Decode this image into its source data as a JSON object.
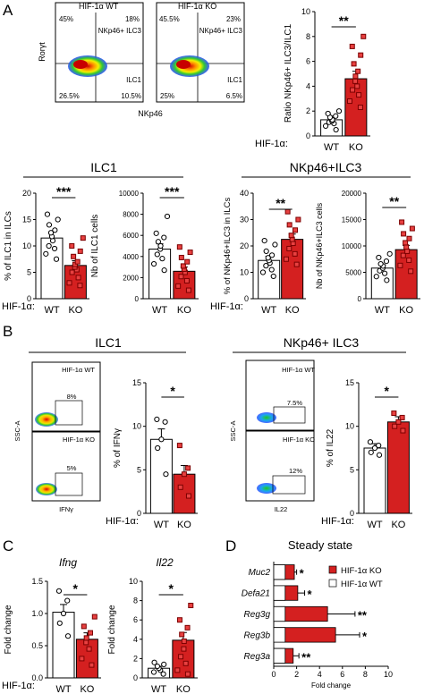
{
  "panels": {
    "A": "A",
    "B": "B",
    "C": "C",
    "D": "D"
  },
  "colors": {
    "wt_fill": "#ffffff",
    "ko_fill": "#d42020",
    "ko_point": "#b01616",
    "stroke": "#000000"
  },
  "groups": {
    "wt": "WT",
    "ko": "KO",
    "hif_label": "HIF-1α:"
  },
  "panel_a": {
    "flow": {
      "wt_title": "HIF-1α WT",
      "ko_title": "HIF-1α KO",
      "y_label": "Rorγt",
      "x_label": "NKp46",
      "gate_label_ilc3": "NKp46+ ILC3",
      "gate_label_ilc1": "ILC1",
      "wt_q": {
        "ul": "45%",
        "ur": "18%",
        "ll": "26.5%",
        "lr": "10.5%"
      },
      "ko_q": {
        "ul": "45.5%",
        "ur": "23%",
        "ll": "25%",
        "lr": "6.5%"
      }
    },
    "ratio_ylabel": "Ratio NKp46+ ILC3/ILC1",
    "ilc1_header": "ILC1",
    "ilc3_header": "NKp46+ILC3",
    "ylabel_pct_ilc1": "% of ILC1 in ILCs",
    "ylabel_nb_ilc1": "Nb of ILC1 cells",
    "ylabel_pct_ilc3": "% of NKp46+ILC3 in ILCs",
    "ylabel_nb_ilc3": "Nb of NKp46+ILC3 cells"
  },
  "panel_b": {
    "ilc1_header": "ILC1",
    "ilc3_header": "NKp46+ ILC3",
    "y_label": "SSC-A",
    "x_ifng": "IFNγ",
    "x_il22": "IL22",
    "wt_title": "HIF-1α WT",
    "ko_title": "HIF-1α KO",
    "ifng_wt_pct": "8%",
    "ifng_ko_pct": "5%",
    "il22_wt_pct": "7.5%",
    "il22_ko_pct": "12%",
    "ylabel_ifng": "% of IFNγ",
    "ylabel_il22": "% of IL22"
  },
  "panel_c": {
    "ifng_title": "Ifng",
    "il22_title": "Il22",
    "ylabel": "Fold change"
  },
  "panel_d": {
    "title": "Steady state",
    "legend_ko": "HIF-1α KO",
    "legend_wt": "HIF-1α WT",
    "xlabel": "Fold change"
  },
  "chart_data": [
    {
      "id": "ratio",
      "type": "bar",
      "categories": [
        "WT",
        "KO"
      ],
      "values": [
        1.3,
        4.6
      ],
      "errors": [
        0.3,
        0.6
      ],
      "ylim": [
        0,
        10
      ],
      "yticks": [
        0,
        2,
        4,
        6,
        8,
        10
      ],
      "significance": "**",
      "ylabel": "Ratio NKp46+ ILC3/ILC1",
      "points": {
        "WT": [
          0.5,
          0.8,
          1.0,
          1.1,
          1.2,
          1.3,
          1.5,
          1.6,
          1.8,
          2.0
        ],
        "KO": [
          2.3,
          2.8,
          3.3,
          3.7,
          4.0,
          4.4,
          4.8,
          5.2,
          5.8,
          6.5,
          7.2,
          8.0
        ]
      }
    },
    {
      "id": "pct_ilc1",
      "type": "bar",
      "categories": [
        "WT",
        "KO"
      ],
      "values": [
        11.5,
        6.3
      ],
      "errors": [
        1.1,
        0.9
      ],
      "ylim": [
        0,
        20
      ],
      "yticks": [
        0,
        5,
        10,
        15,
        20
      ],
      "significance": "***",
      "ylabel": "% of ILC1 in ILCs",
      "points": {
        "WT": [
          7.5,
          8.5,
          9.5,
          10.0,
          11.0,
          11.8,
          12.5,
          13.0,
          14.0,
          15.0,
          16.0
        ],
        "KO": [
          2.5,
          3.0,
          4.0,
          5.0,
          5.5,
          6.0,
          6.5,
          7.0,
          8.0,
          9.0,
          10.0,
          11.5
        ]
      }
    },
    {
      "id": "nb_ilc1",
      "type": "bar",
      "categories": [
        "WT",
        "KO"
      ],
      "values": [
        4700,
        2600
      ],
      "errors": [
        500,
        400
      ],
      "ylim": [
        0,
        10000
      ],
      "yticks": [
        0,
        2000,
        4000,
        6000,
        8000,
        10000
      ],
      "significance": "***",
      "ylabel": "Nb of ILC1 cells",
      "points": {
        "WT": [
          2700,
          3300,
          3800,
          4200,
          4700,
          5000,
          5400,
          5800,
          6200,
          7800
        ],
        "KO": [
          800,
          1200,
          1700,
          2100,
          2500,
          2800,
          3100,
          3500,
          3900,
          4400,
          4900
        ]
      }
    },
    {
      "id": "pct_ilc3",
      "type": "bar",
      "categories": [
        "WT",
        "KO"
      ],
      "values": [
        14.5,
        22.5
      ],
      "errors": [
        1.6,
        2.0
      ],
      "ylim": [
        0,
        40
      ],
      "yticks": [
        0,
        10,
        20,
        30,
        40
      ],
      "significance": "**",
      "ylabel": "% of NKp46+ILC3 in ILCs",
      "points": {
        "WT": [
          8.5,
          10.0,
          11.0,
          12.5,
          13.5,
          14.5,
          15.5,
          16.5,
          18.0,
          20.5,
          22.0
        ],
        "KO": [
          13.0,
          15.0,
          17.0,
          19.0,
          21.0,
          22.5,
          24.0,
          26.0,
          28.0,
          30.0,
          33.0
        ]
      }
    },
    {
      "id": "nb_ilc3",
      "type": "bar",
      "categories": [
        "WT",
        "KO"
      ],
      "values": [
        5800,
        9300
      ],
      "errors": [
        600,
        800
      ],
      "ylim": [
        0,
        20000
      ],
      "yticks": [
        0,
        5000,
        10000,
        15000,
        20000
      ],
      "significance": "**",
      "ylabel": "Nb of NKp46+ILC3 cells",
      "points": {
        "WT": [
          3500,
          4200,
          4800,
          5300,
          5800,
          6200,
          6600,
          7100,
          7800,
          8500
        ],
        "KO": [
          5200,
          6300,
          7300,
          8200,
          9000,
          9800,
          10600,
          11400,
          12300,
          13300,
          14500
        ]
      }
    },
    {
      "id": "ifng_pct",
      "type": "bar",
      "categories": [
        "WT",
        "KO"
      ],
      "values": [
        8.5,
        4.5
      ],
      "errors": [
        1.2,
        1.0
      ],
      "ylim": [
        0,
        15
      ],
      "yticks": [
        0,
        5,
        10,
        15
      ],
      "significance": "*",
      "ylabel": "% of IFNγ",
      "points": {
        "WT": [
          4.5,
          7.5,
          8.5,
          10.5,
          10.8
        ],
        "KO": [
          2.0,
          3.0,
          4.5,
          5.2,
          7.8
        ]
      }
    },
    {
      "id": "il22_pct",
      "type": "bar",
      "categories": [
        "WT",
        "KO"
      ],
      "values": [
        7.5,
        10.5
      ],
      "errors": [
        0.5,
        0.6
      ],
      "ylim": [
        0,
        15
      ],
      "yticks": [
        0,
        5,
        10,
        15
      ],
      "significance": "*",
      "ylabel": "% of IL22",
      "points": {
        "WT": [
          6.7,
          7.0,
          7.5,
          7.8,
          8.2
        ],
        "KO": [
          9.5,
          10.0,
          10.5,
          11.0,
          11.5
        ]
      }
    },
    {
      "id": "ifng_fold",
      "type": "bar",
      "categories": [
        "WT",
        "KO"
      ],
      "values": [
        1.02,
        0.6
      ],
      "errors": [
        0.12,
        0.1
      ],
      "ylim": [
        0,
        1.5
      ],
      "yticks": [
        0.0,
        0.5,
        1.0,
        1.5
      ],
      "significance": "*",
      "ylabel": "Fold change",
      "title": "Ifng",
      "points": {
        "WT": [
          0.65,
          0.85,
          1.0,
          1.2,
          1.35
        ],
        "KO": [
          0.2,
          0.3,
          0.45,
          0.55,
          0.62,
          0.7,
          0.8,
          0.95
        ]
      }
    },
    {
      "id": "il22_fold",
      "type": "bar",
      "categories": [
        "WT",
        "KO"
      ],
      "values": [
        1.0,
        3.9
      ],
      "errors": [
        0.2,
        0.8
      ],
      "ylim": [
        0,
        10
      ],
      "yticks": [
        0,
        2,
        4,
        6,
        8,
        10
      ],
      "significance": "*",
      "ylabel": "Fold change",
      "title": "Il22",
      "points": {
        "WT": [
          0.4,
          0.6,
          0.8,
          1.0,
          1.2,
          1.4,
          1.6
        ],
        "KO": [
          0.4,
          0.8,
          1.5,
          2.2,
          3.0,
          3.8,
          4.5,
          5.2,
          6.0,
          7.5
        ]
      }
    },
    {
      "id": "steady_state",
      "type": "bar",
      "orientation": "horizontal",
      "title": "Steady state",
      "categories": [
        "Muc2",
        "Defa21",
        "Reg3g",
        "Reg3b",
        "Reg3a"
      ],
      "series": [
        {
          "name": "HIF-1α KO",
          "values": [
            1.8,
            2.1,
            4.7,
            5.4,
            1.7
          ],
          "errors": [
            0.2,
            0.6,
            2.4,
            2.1,
            0.5
          ]
        },
        {
          "name": "HIF-1α WT",
          "values": [
            1,
            1,
            1,
            1,
            1
          ]
        }
      ],
      "significance": [
        "*",
        "*",
        "**",
        "*",
        "**"
      ],
      "xlim": [
        0,
        10
      ],
      "xticks": [
        0,
        2,
        4,
        6,
        8,
        10
      ],
      "xlabel": "Fold change",
      "legend": "right"
    }
  ]
}
